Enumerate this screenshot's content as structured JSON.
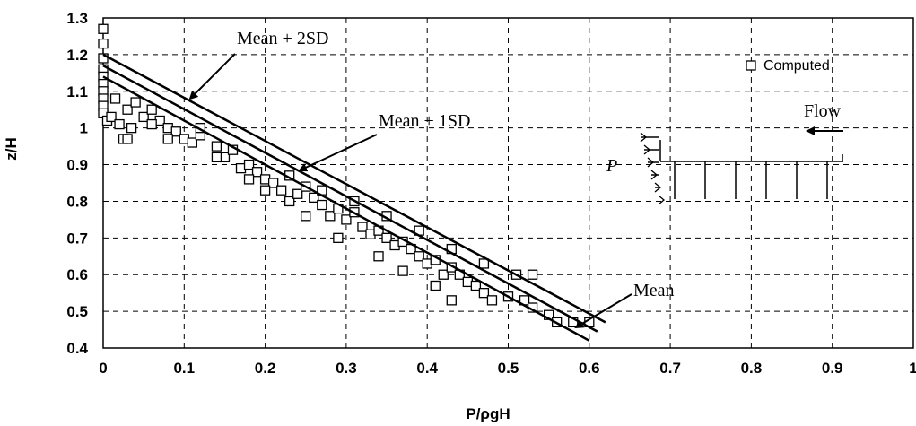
{
  "chart_data": {
    "type": "scatter",
    "xlabel": "P/ρgH",
    "ylabel": "z/H",
    "xlim": [
      0,
      1
    ],
    "ylim": [
      0.4,
      1.3
    ],
    "x_ticks": [
      "0",
      "0.1",
      "0.2",
      "0.3",
      "0.4",
      "0.5",
      "0.6",
      "0.7",
      "0.8",
      "0.9",
      "1"
    ],
    "y_ticks": [
      "0.4",
      "0.5",
      "0.6",
      "0.7",
      "0.8",
      "0.9",
      "1",
      "1.1",
      "1.2",
      "1.3"
    ],
    "grid": true,
    "legend": {
      "placement": "top-right",
      "entries": [
        "Computed"
      ]
    },
    "series": [
      {
        "name": "Computed",
        "marker": "open-square",
        "points": [
          [
            0.0,
            1.27
          ],
          [
            0.0,
            1.23
          ],
          [
            0.0,
            1.19
          ],
          [
            0.0,
            1.16
          ],
          [
            0.0,
            1.14
          ],
          [
            0.0,
            1.12
          ],
          [
            0.0,
            1.1
          ],
          [
            0.0,
            1.08
          ],
          [
            0.0,
            1.06
          ],
          [
            0.0,
            1.04
          ],
          [
            0.005,
            1.02
          ],
          [
            0.01,
            1.03
          ],
          [
            0.015,
            1.08
          ],
          [
            0.02,
            1.01
          ],
          [
            0.025,
            0.97
          ],
          [
            0.035,
            1.0
          ],
          [
            0.03,
            1.05
          ],
          [
            0.04,
            1.07
          ],
          [
            0.05,
            1.03
          ],
          [
            0.06,
            1.05
          ],
          [
            0.07,
            1.02
          ],
          [
            0.08,
            1.0
          ],
          [
            0.09,
            0.99
          ],
          [
            0.1,
            0.97
          ],
          [
            0.11,
            0.96
          ],
          [
            0.12,
            0.98
          ],
          [
            0.14,
            0.95
          ],
          [
            0.15,
            0.92
          ],
          [
            0.16,
            0.94
          ],
          [
            0.17,
            0.89
          ],
          [
            0.18,
            0.9
          ],
          [
            0.19,
            0.88
          ],
          [
            0.2,
            0.86
          ],
          [
            0.21,
            0.85
          ],
          [
            0.22,
            0.83
          ],
          [
            0.23,
            0.8
          ],
          [
            0.24,
            0.82
          ],
          [
            0.25,
            0.84
          ],
          [
            0.26,
            0.81
          ],
          [
            0.27,
            0.79
          ],
          [
            0.28,
            0.76
          ],
          [
            0.29,
            0.78
          ],
          [
            0.3,
            0.75
          ],
          [
            0.31,
            0.77
          ],
          [
            0.32,
            0.73
          ],
          [
            0.33,
            0.71
          ],
          [
            0.34,
            0.72
          ],
          [
            0.35,
            0.7
          ],
          [
            0.36,
            0.68
          ],
          [
            0.37,
            0.69
          ],
          [
            0.38,
            0.67
          ],
          [
            0.39,
            0.65
          ],
          [
            0.4,
            0.63
          ],
          [
            0.41,
            0.64
          ],
          [
            0.42,
            0.6
          ],
          [
            0.43,
            0.62
          ],
          [
            0.44,
            0.6
          ],
          [
            0.45,
            0.58
          ],
          [
            0.46,
            0.57
          ],
          [
            0.47,
            0.55
          ],
          [
            0.48,
            0.53
          ],
          [
            0.5,
            0.54
          ],
          [
            0.52,
            0.53
          ],
          [
            0.53,
            0.51
          ],
          [
            0.55,
            0.49
          ],
          [
            0.56,
            0.47
          ],
          [
            0.58,
            0.47
          ],
          [
            0.6,
            0.47
          ],
          [
            0.41,
            0.57
          ],
          [
            0.43,
            0.53
          ],
          [
            0.37,
            0.61
          ],
          [
            0.34,
            0.65
          ],
          [
            0.29,
            0.7
          ],
          [
            0.25,
            0.76
          ],
          [
            0.2,
            0.83
          ],
          [
            0.14,
            0.92
          ],
          [
            0.08,
            0.97
          ],
          [
            0.03,
            0.97
          ],
          [
            0.06,
            1.01
          ],
          [
            0.12,
            1.0
          ],
          [
            0.18,
            0.86
          ],
          [
            0.23,
            0.87
          ],
          [
            0.27,
            0.83
          ],
          [
            0.31,
            0.8
          ],
          [
            0.35,
            0.76
          ],
          [
            0.39,
            0.72
          ],
          [
            0.43,
            0.67
          ],
          [
            0.47,
            0.63
          ],
          [
            0.51,
            0.6
          ],
          [
            0.53,
            0.6
          ]
        ]
      }
    ],
    "lines": [
      {
        "label": "Mean",
        "x": [
          0.0,
          0.6
        ],
        "y": [
          1.14,
          0.42
        ]
      },
      {
        "label": "Mean + 1SD",
        "x": [
          0.0,
          0.61
        ],
        "y": [
          1.17,
          0.445
        ]
      },
      {
        "label": "Mean + 2SD",
        "x": [
          0.0,
          0.62
        ],
        "y": [
          1.2,
          0.47
        ]
      }
    ],
    "annotations": {
      "mean_label": "Mean",
      "mean_1sd_label": "Mean + 1SD",
      "mean_2sd_label": "Mean + 2SD"
    },
    "inset": {
      "pressure_label": "P",
      "flow_label": "Flow"
    }
  }
}
